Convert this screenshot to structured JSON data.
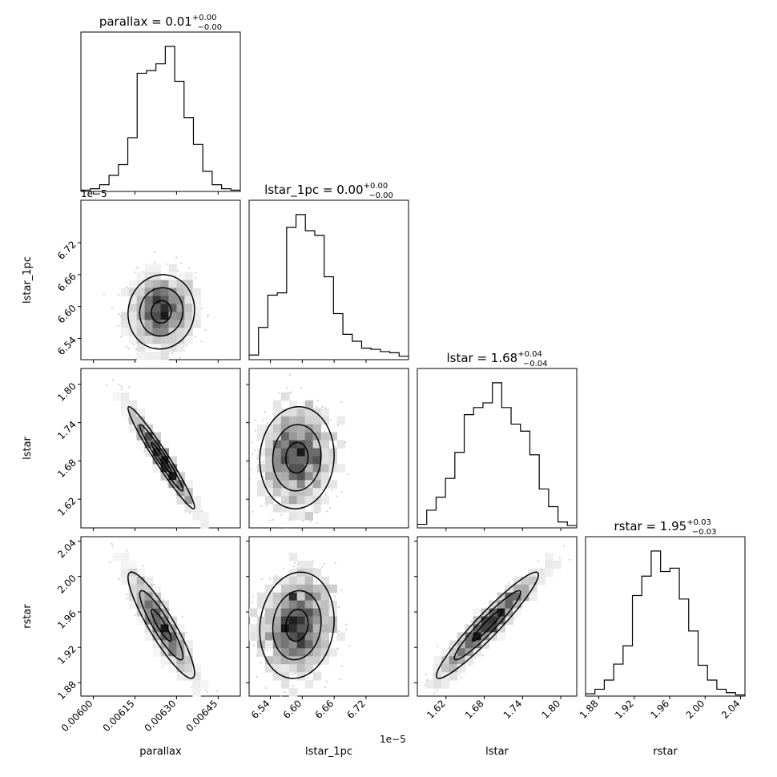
{
  "chart_data": {
    "type": "corner",
    "parameters": [
      "parallax",
      "lstar_1pc",
      "lstar",
      "rstar"
    ],
    "titles": {
      "parallax": {
        "name": "parallax",
        "value": "0.01",
        "upper": "+0.00",
        "lower": "−0.00"
      },
      "lstar_1pc": {
        "name": "lstar_1pc",
        "value": "0.00",
        "upper": "+0.00",
        "lower": "−0.00"
      },
      "lstar": {
        "name": "lstar",
        "value": "1.68",
        "upper": "+0.04",
        "lower": "−0.04"
      },
      "rstar": {
        "name": "rstar",
        "value": "1.95",
        "upper": "+0.03",
        "lower": "−0.03"
      }
    },
    "axis_labels": {
      "parallax": "parallax",
      "lstar_1pc": "lstar_1pc",
      "lstar": "lstar",
      "rstar": "rstar"
    },
    "offset_text": {
      "lstar_1pc_y": "1e−5",
      "lstar_1pc_x": "1e−5"
    },
    "ranges": {
      "parallax": [
        0.005955,
        0.00653
      ],
      "lstar_1pc": [
        6.5,
        6.8
      ],
      "lstar": [
        1.575,
        1.825
      ],
      "rstar": [
        1.865,
        2.045
      ]
    },
    "ticks": {
      "parallax": {
        "values": [
          0.006,
          0.00615,
          0.0063,
          0.00645
        ],
        "labels": [
          "0.00600",
          "0.00615",
          "0.00630",
          "0.00645"
        ]
      },
      "lstar_1pc": {
        "values": [
          6.54,
          6.6,
          6.66,
          6.72
        ],
        "labels": [
          "6.54",
          "6.60",
          "6.66",
          "6.72"
        ]
      },
      "lstar": {
        "values": [
          1.62,
          1.68,
          1.74,
          1.8
        ],
        "labels": [
          "1.62",
          "1.68",
          "1.74",
          "1.80"
        ]
      },
      "rstar": {
        "values": [
          1.88,
          1.92,
          1.96,
          2.0,
          2.04
        ],
        "labels": [
          "1.88",
          "1.92",
          "1.96",
          "2.00",
          "2.04"
        ]
      }
    },
    "histograms": {
      "parallax": [
        1,
        2,
        5,
        12,
        20,
        40,
        88,
        90,
        95,
        108,
        82,
        55,
        35,
        15,
        5,
        2,
        1
      ],
      "lstar_1pc": [
        4,
        28,
        56,
        58,
        115,
        126,
        112,
        108,
        72,
        40,
        22,
        16,
        10,
        9,
        7,
        6,
        3
      ],
      "lstar": [
        3,
        15,
        26,
        42,
        64,
        96,
        102,
        106,
        123,
        102,
        88,
        82,
        62,
        33,
        18,
        5,
        2
      ],
      "rstar": [
        2,
        6,
        14,
        28,
        44,
        88,
        105,
        127,
        109,
        112,
        85,
        57,
        27,
        14,
        6,
        3,
        1
      ]
    },
    "grid": false,
    "legend": "none"
  }
}
